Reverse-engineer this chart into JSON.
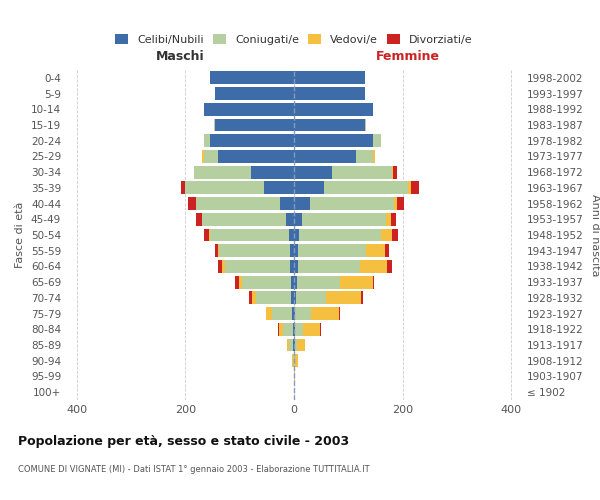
{
  "age_groups": [
    "100+",
    "95-99",
    "90-94",
    "85-89",
    "80-84",
    "75-79",
    "70-74",
    "65-69",
    "60-64",
    "55-59",
    "50-54",
    "45-49",
    "40-44",
    "35-39",
    "30-34",
    "25-29",
    "20-24",
    "15-19",
    "10-14",
    "5-9",
    "0-4"
  ],
  "birth_years": [
    "≤ 1902",
    "1903-1907",
    "1908-1912",
    "1913-1917",
    "1918-1922",
    "1923-1927",
    "1928-1932",
    "1933-1937",
    "1938-1942",
    "1943-1947",
    "1948-1952",
    "1953-1957",
    "1958-1962",
    "1963-1967",
    "1968-1972",
    "1973-1977",
    "1978-1982",
    "1983-1987",
    "1988-1992",
    "1993-1997",
    "1998-2002"
  ],
  "males": {
    "celibi": [
      0,
      0,
      0,
      1,
      2,
      3,
      5,
      6,
      8,
      8,
      9,
      14,
      26,
      55,
      80,
      140,
      155,
      145,
      165,
      145,
      155
    ],
    "coniugati": [
      0,
      0,
      2,
      8,
      18,
      38,
      65,
      90,
      120,
      130,
      145,
      155,
      155,
      145,
      105,
      25,
      10,
      2,
      0,
      0,
      0
    ],
    "vedovi": [
      0,
      0,
      1,
      3,
      8,
      10,
      8,
      5,
      4,
      2,
      2,
      0,
      0,
      0,
      0,
      5,
      0,
      0,
      0,
      0,
      0
    ],
    "divorziati": [
      0,
      0,
      0,
      0,
      2,
      0,
      4,
      8,
      8,
      5,
      10,
      12,
      14,
      8,
      0,
      0,
      0,
      0,
      0,
      0,
      0
    ]
  },
  "females": {
    "nubili": [
      0,
      0,
      0,
      1,
      2,
      2,
      4,
      5,
      7,
      7,
      10,
      14,
      30,
      55,
      70,
      115,
      145,
      130,
      145,
      130,
      130
    ],
    "coniugate": [
      0,
      0,
      2,
      5,
      15,
      30,
      55,
      80,
      115,
      125,
      150,
      155,
      155,
      155,
      110,
      30,
      15,
      2,
      0,
      0,
      0
    ],
    "vedove": [
      0,
      1,
      5,
      15,
      30,
      50,
      65,
      60,
      50,
      35,
      20,
      10,
      5,
      5,
      2,
      5,
      0,
      0,
      0,
      0,
      0
    ],
    "divorziate": [
      0,
      0,
      0,
      0,
      2,
      2,
      3,
      3,
      8,
      8,
      12,
      8,
      12,
      15,
      8,
      0,
      0,
      0,
      0,
      0,
      0
    ]
  },
  "colors": {
    "celibi": "#3d6ca8",
    "coniugati": "#b5cfa0",
    "vedovi": "#f5c040",
    "divorziati": "#cc2222"
  },
  "legend_labels": [
    "Celibi/Nubili",
    "Coniugati/e",
    "Vedovi/e",
    "Divorziati/e"
  ],
  "title": "Popolazione per età, sesso e stato civile - 2003",
  "subtitle": "COMUNE DI VIGNATE (MI) - Dati ISTAT 1° gennaio 2003 - Elaborazione TUTTITALIA.IT",
  "ylabel_left": "Fasce di età",
  "ylabel_right": "Anni di nascita",
  "xlabel_left": "Maschi",
  "xlabel_right": "Femmine",
  "xlim": 420,
  "bg_color": "#ffffff",
  "grid_color": "#cccccc"
}
